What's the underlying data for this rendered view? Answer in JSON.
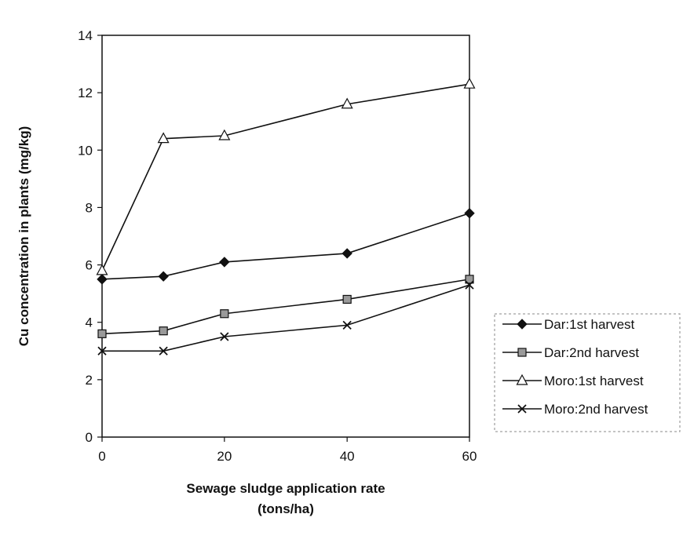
{
  "chart_data": {
    "type": "line",
    "x": [
      0,
      10,
      20,
      40,
      60
    ],
    "x_tick_labels": [
      "0",
      "20",
      "40",
      "60"
    ],
    "x_tick_values": [
      0,
      20,
      40,
      60
    ],
    "y_tick_labels": [
      "0",
      "2",
      "4",
      "6",
      "8",
      "10",
      "12",
      "14"
    ],
    "y_tick_values": [
      0,
      2,
      4,
      6,
      8,
      10,
      12,
      14
    ],
    "xlim": [
      0,
      60
    ],
    "ylim": [
      0,
      14
    ],
    "xlabel_line1": "Sewage sludge application rate",
    "xlabel_line2": "(tons/ha)",
    "ylabel": "Cu concentration in plants (mg/kg)",
    "grid": false,
    "legend_position": "right",
    "x_axis_spacing": "categorical-positions",
    "series": [
      {
        "name": "Dar:1st harvest",
        "marker": "filled-diamond",
        "color": "#111111",
        "values": [
          5.5,
          5.6,
          6.1,
          6.4,
          7.8
        ]
      },
      {
        "name": "Dar:2nd harvest",
        "marker": "gray-square",
        "color": "#111111",
        "values": [
          3.6,
          3.7,
          4.3,
          4.8,
          5.5
        ]
      },
      {
        "name": "Moro:1st harvest",
        "marker": "open-triangle",
        "color": "#111111",
        "values": [
          5.8,
          10.4,
          10.5,
          11.6,
          12.3
        ]
      },
      {
        "name": "Moro:2nd harvest",
        "marker": "x",
        "color": "#111111",
        "values": [
          3.0,
          3.0,
          3.5,
          3.9,
          5.3
        ]
      }
    ]
  }
}
